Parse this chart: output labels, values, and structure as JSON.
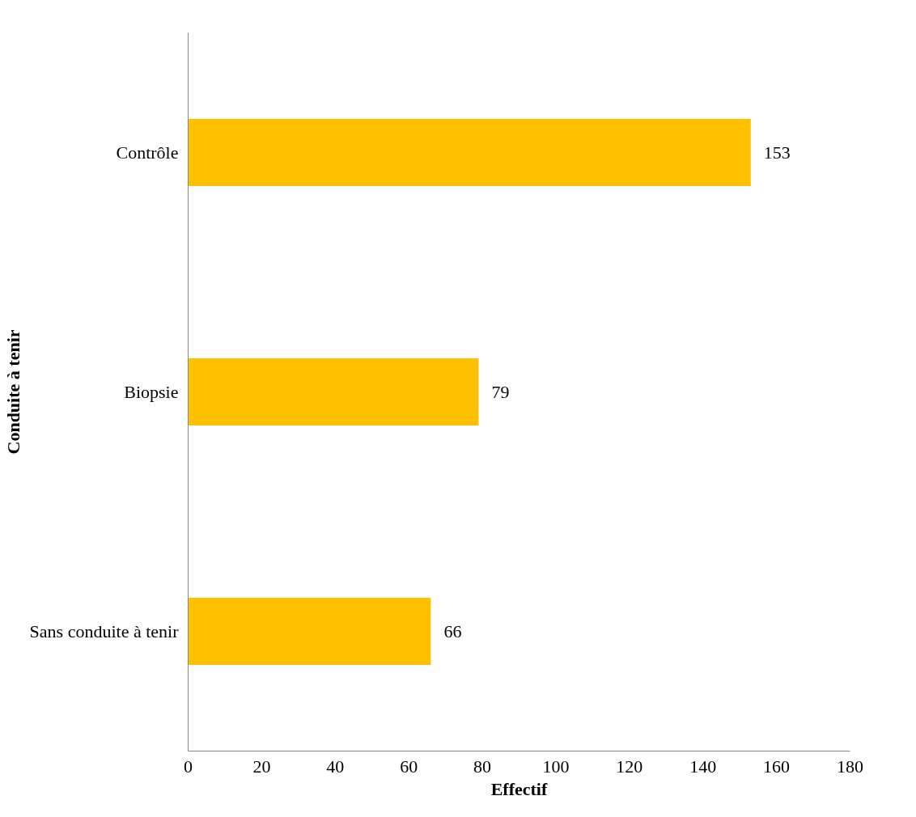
{
  "chart_data": {
    "type": "bar",
    "orientation": "horizontal",
    "xlabel": "Effectif",
    "ylabel": "Conduite à tenir",
    "categories": [
      "Contrôle",
      "Biopsie",
      "Sans conduite à tenir"
    ],
    "values": [
      153,
      79,
      66
    ],
    "color": "#ffc000",
    "xlim": [
      0,
      180
    ],
    "xticks": [
      0,
      20,
      40,
      60,
      80,
      100,
      120,
      140,
      160,
      180
    ],
    "grid": false,
    "data_labels": true
  }
}
